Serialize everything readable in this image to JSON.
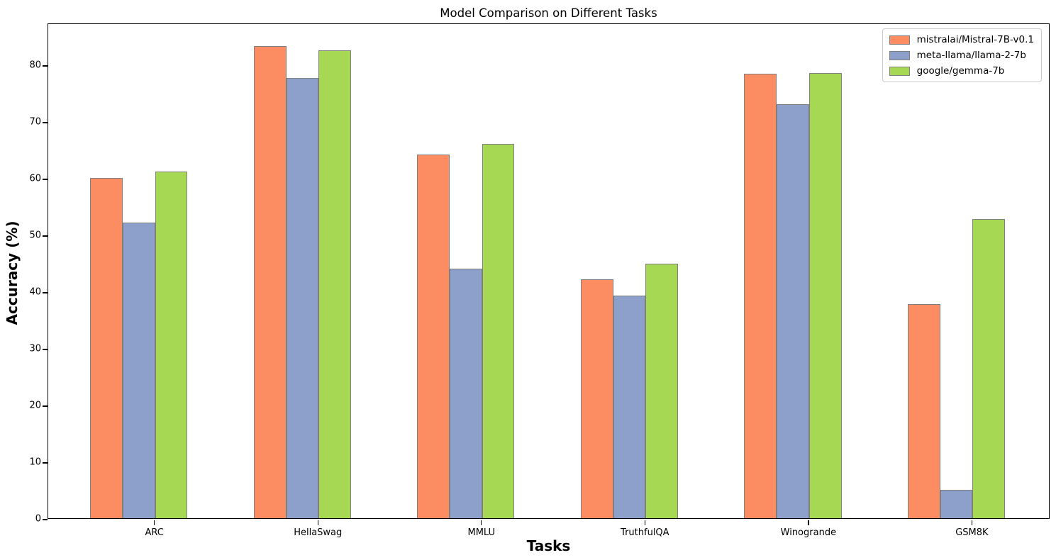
{
  "title": "Model Comparison on Different Tasks",
  "chart_data": {
    "type": "bar",
    "title": "Model Comparison on Different Tasks",
    "xlabel": "Tasks",
    "ylabel": "Accuracy (%)",
    "categories": [
      "ARC",
      "HellaSwag",
      "MMLU",
      "TruthfulQA",
      "Winogrande",
      "GSM8K"
    ],
    "series": [
      {
        "name": "mistralai/Mistral-7B-v0.1",
        "color": "#fc8d62",
        "values": [
          60.0,
          83.3,
          64.2,
          42.2,
          78.4,
          37.8
        ]
      },
      {
        "name": "meta-llama/llama-2-7b",
        "color": "#8da0cb",
        "values": [
          52.2,
          77.7,
          44.0,
          39.3,
          73.0,
          5.0
        ]
      },
      {
        "name": "google/gemma-7b",
        "color": "#a6d854",
        "values": [
          61.1,
          82.5,
          66.0,
          44.9,
          78.5,
          52.8
        ]
      }
    ],
    "ylim": [
      0,
      87.4
    ],
    "yticks": [
      0,
      10,
      20,
      30,
      40,
      50,
      60,
      70,
      80
    ],
    "grid": false,
    "legend_position": "upper right",
    "bar_edge_color": "#7f7f7f",
    "spine_color": "#000000"
  }
}
